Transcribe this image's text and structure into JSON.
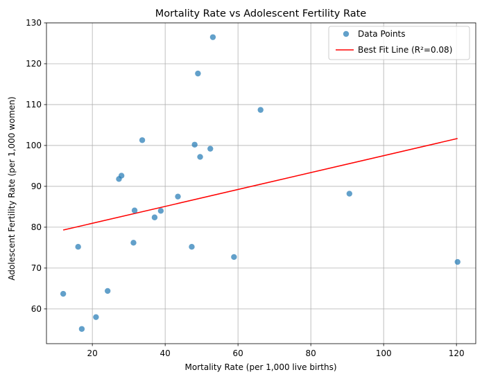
{
  "chart_data": {
    "type": "scatter",
    "title": "Mortality Rate vs Adolescent Fertility Rate",
    "xlabel": "Mortality Rate (per 1,000 live births)",
    "ylabel": "Adolescent Fertility Rate (per 1,000 women)",
    "xlim": [
      7.4,
      125.3
    ],
    "ylim": [
      51.5,
      130
    ],
    "xticks": [
      20,
      40,
      60,
      80,
      100,
      120
    ],
    "yticks": [
      60,
      70,
      80,
      90,
      100,
      110,
      120,
      130
    ],
    "grid": true,
    "legend_position": "top-right",
    "series": [
      {
        "name": "Data Points",
        "kind": "scatter",
        "color": "#1f77b4",
        "points": [
          [
            53.1,
            126.5
          ],
          [
            49.0,
            117.6
          ],
          [
            66.2,
            108.7
          ],
          [
            33.7,
            101.3
          ],
          [
            48.1,
            100.2
          ],
          [
            52.4,
            99.2
          ],
          [
            49.6,
            97.2
          ],
          [
            28.0,
            92.6
          ],
          [
            27.3,
            91.8
          ],
          [
            90.6,
            88.2
          ],
          [
            43.5,
            87.5
          ],
          [
            31.6,
            84.1
          ],
          [
            38.8,
            84.0
          ],
          [
            37.1,
            82.4
          ],
          [
            31.3,
            76.2
          ],
          [
            16.1,
            75.2
          ],
          [
            47.3,
            75.2
          ],
          [
            58.9,
            72.7
          ],
          [
            120.3,
            71.5
          ],
          [
            24.2,
            64.4
          ],
          [
            12.0,
            63.7
          ],
          [
            21.0,
            58.0
          ],
          [
            17.1,
            55.1
          ]
        ]
      },
      {
        "name": "Best Fit Line (R²=0.08)",
        "kind": "line",
        "color": "#ff0000",
        "points": [
          [
            12.0,
            79.3
          ],
          [
            120.3,
            101.7
          ]
        ]
      }
    ]
  }
}
